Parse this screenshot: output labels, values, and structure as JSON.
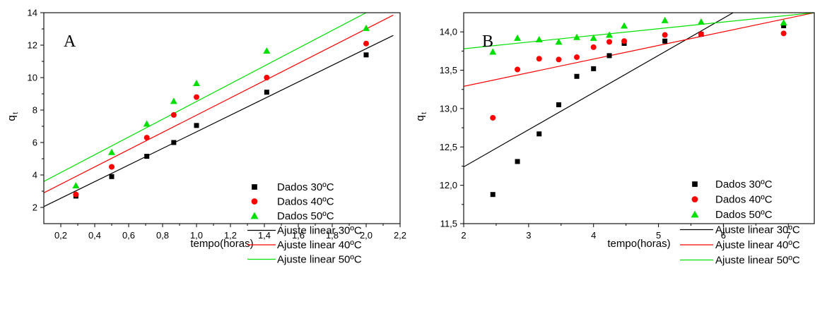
{
  "chart_data": [
    {
      "type": "scatter",
      "panel_label": "A",
      "xlabel": "tempo(horas)",
      "ylabel": "q",
      "ylabel_subscript": "t",
      "xlim": [
        0.1,
        2.2
      ],
      "ylim": [
        1,
        14
      ],
      "xticks": [
        "0,2",
        "0,4",
        "0,6",
        "0,8",
        "1,0",
        "1,2",
        "1,4",
        "1,6",
        "1,8",
        "2,0",
        "2,2"
      ],
      "xtick_values": [
        0.2,
        0.4,
        0.6,
        0.8,
        1.0,
        1.2,
        1.4,
        1.6,
        1.8,
        2.0,
        2.2
      ],
      "yticks": [
        "2",
        "4",
        "6",
        "8",
        "10",
        "12",
        "14"
      ],
      "ytick_values": [
        2,
        4,
        6,
        8,
        10,
        12,
        14
      ],
      "legend_position": "lower-right",
      "series": [
        {
          "name": "Dados 30ºC",
          "kind": "points",
          "marker": "square",
          "color": "#000000",
          "x": [
            0.289,
            0.5,
            0.707,
            0.866,
            1.0,
            1.414,
            2.0
          ],
          "y": [
            2.7,
            3.9,
            5.15,
            6.0,
            7.05,
            9.1,
            11.4
          ]
        },
        {
          "name": "Dados 40ºC",
          "kind": "points",
          "marker": "circle",
          "color": "#ff0000",
          "x": [
            0.289,
            0.5,
            0.707,
            0.866,
            1.0,
            1.414,
            2.0
          ],
          "y": [
            2.8,
            4.5,
            6.3,
            7.7,
            8.8,
            10.0,
            12.1
          ]
        },
        {
          "name": "Dados 50ºC",
          "kind": "points",
          "marker": "triangle",
          "color": "#00e000",
          "x": [
            0.289,
            0.5,
            0.707,
            0.866,
            1.0,
            1.414,
            2.0
          ],
          "y": [
            3.35,
            5.4,
            7.15,
            8.55,
            9.65,
            11.65,
            13.05
          ]
        },
        {
          "name": "Ajuste linear 30ºC",
          "kind": "line",
          "color": "#000000",
          "x": [
            0.1,
            2.16
          ],
          "y": [
            2.05,
            12.6
          ]
        },
        {
          "name": "Ajuste linear 40ºC",
          "kind": "line",
          "color": "#ff0000",
          "x": [
            0.1,
            2.16
          ],
          "y": [
            2.9,
            13.85
          ]
        },
        {
          "name": "Ajuste linear 50ºC",
          "kind": "line",
          "color": "#00e000",
          "x": [
            0.1,
            2.0
          ],
          "y": [
            3.6,
            14.0
          ]
        }
      ]
    },
    {
      "type": "scatter",
      "panel_label": "B",
      "xlabel": "tempo(horas)",
      "ylabel": "q",
      "ylabel_subscript": "t",
      "xlim": [
        2,
        7.4
      ],
      "ylim": [
        11.5,
        14.25
      ],
      "xticks": [
        "2",
        "3",
        "4",
        "5",
        "6",
        "7"
      ],
      "xtick_values": [
        2,
        3,
        4,
        5,
        6,
        7
      ],
      "yticks": [
        "11,5",
        "12,0",
        "12,5",
        "13,0",
        "13,5",
        "14,0"
      ],
      "ytick_values": [
        11.5,
        12.0,
        12.5,
        13.0,
        13.5,
        14.0
      ],
      "legend_position": "lower-right",
      "series": [
        {
          "name": "Dados 30ºC",
          "kind": "points",
          "marker": "square",
          "color": "#000000",
          "x": [
            2.449,
            2.828,
            3.162,
            3.464,
            3.742,
            4.0,
            4.243,
            4.472,
            5.099,
            5.657,
            6.928
          ],
          "y": [
            11.88,
            12.31,
            12.67,
            13.05,
            13.42,
            13.52,
            13.69,
            13.85,
            13.88,
            13.97,
            14.08
          ]
        },
        {
          "name": "Dados 40ºC",
          "kind": "points",
          "marker": "circle",
          "color": "#ff0000",
          "x": [
            2.449,
            2.828,
            3.162,
            3.464,
            3.742,
            4.0,
            4.243,
            4.472,
            5.099,
            5.657,
            6.928
          ],
          "y": [
            12.88,
            13.51,
            13.65,
            13.64,
            13.67,
            13.8,
            13.87,
            13.88,
            13.96,
            13.97,
            13.98
          ]
        },
        {
          "name": "Dados 50ºC",
          "kind": "points",
          "marker": "triangle",
          "color": "#00e000",
          "x": [
            2.449,
            2.828,
            3.162,
            3.464,
            3.742,
            4.0,
            4.243,
            4.472,
            5.099,
            5.657,
            6.928
          ],
          "y": [
            13.74,
            13.92,
            13.9,
            13.87,
            13.93,
            13.92,
            13.96,
            14.08,
            14.15,
            14.13,
            14.12
          ]
        },
        {
          "name": "Ajuste linear 30ºC",
          "kind": "line",
          "color": "#000000",
          "x": [
            2.0,
            6.15
          ],
          "y": [
            12.24,
            14.25
          ]
        },
        {
          "name": "Ajuste linear 40ºC",
          "kind": "line",
          "color": "#ff0000",
          "x": [
            2.0,
            7.4
          ],
          "y": [
            13.29,
            14.25
          ]
        },
        {
          "name": "Ajuste linear 50ºC",
          "kind": "line",
          "color": "#00e000",
          "x": [
            2.0,
            7.4
          ],
          "y": [
            13.78,
            14.25
          ]
        }
      ]
    }
  ]
}
